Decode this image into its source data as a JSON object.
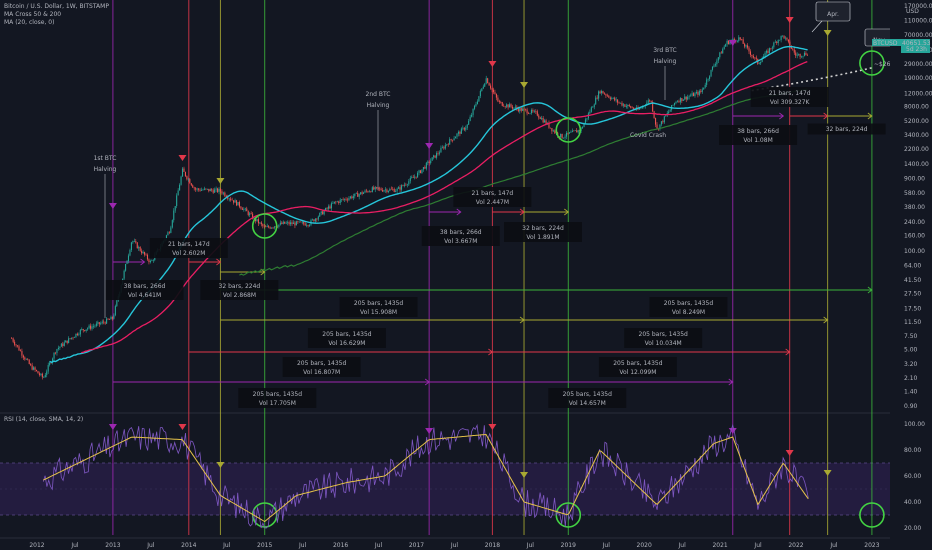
{
  "header": {
    "symbol_line": "Bitcoin / U.S. Dollar, 1W, BITSTAMP",
    "indicator_1": "MA Cross 50 & 200",
    "indicator_2": "MA (20, close, 0)",
    "rsi_line": "RSI (14, close, SMA, 14, 2)"
  },
  "price_axis": {
    "currency": "USD",
    "ticks": [
      "170000.00",
      "110000.00",
      "70000.00",
      "45000.00",
      "29000.00",
      "19000.00",
      "12000.00",
      "8000.00",
      "5200.00",
      "3400.00",
      "2200.00",
      "1400.00",
      "900.00",
      "580.00",
      "380.00",
      "240.00",
      "160.00",
      "100.00",
      "64.00",
      "41.50",
      "27.50",
      "17.50",
      "11.50",
      "7.50",
      "5.00",
      "3.20",
      "2.10",
      "1.40",
      "0.90"
    ],
    "current_price_tag": "BTCUSD",
    "current_price": "40651.53",
    "tag_sub": "5d 23h"
  },
  "rsi_axis": {
    "ticks": [
      "100.00",
      "80.00",
      "60.00",
      "40.00",
      "20.00"
    ]
  },
  "time_axis": {
    "ticks": [
      "2012",
      "Jul",
      "2013",
      "Jul",
      "2014",
      "Jul",
      "2015",
      "Jul",
      "2016",
      "Jul",
      "2017",
      "Jul",
      "2018",
      "Jul",
      "2019",
      "Jul",
      "2020",
      "Jul",
      "2021",
      "Jul",
      "2022",
      "Jul",
      "2023"
    ]
  },
  "annotations": {
    "halving_1": [
      "1st BTC",
      "Halving"
    ],
    "halving_2": [
      "2nd BTC",
      "Halving"
    ],
    "halving_3": [
      "3rd BTC",
      "Halving"
    ],
    "covid": "Covid Crash",
    "apr": "Apr.",
    "nov": "Nov",
    "target": "~$26k"
  },
  "boxes": [
    {
      "l1": "21 bars, 147d",
      "l2": "Vol 2.602M"
    },
    {
      "l1": "38 bars, 266d",
      "l2": "Vol 4.641M"
    },
    {
      "l1": "32 bars, 224d",
      "l2": "Vol 2.868M"
    },
    {
      "l1": "21 bars, 147d",
      "l2": "Vol 2.447M"
    },
    {
      "l1": "38 bars, 266d",
      "l2": "Vol 3.667M"
    },
    {
      "l1": "32 bars, 224d",
      "l2": "Vol 1.891M"
    },
    {
      "l1": "21 bars, 147d",
      "l2": "Vol 309.327K"
    },
    {
      "l1": "38 bars, 266d",
      "l2": "Vol 1.08M"
    },
    {
      "l1": "32 bars, 224d",
      "l2": ""
    },
    {
      "l1": "205 bars, 1435d",
      "l2": "Vol 15.908M"
    },
    {
      "l1": "205 bars, 1435d",
      "l2": "Vol 8.249M"
    },
    {
      "l1": "205 bars, 1435d",
      "l2": "Vol 16.629M"
    },
    {
      "l1": "205 bars, 1435d",
      "l2": "Vol 10.034M"
    },
    {
      "l1": "205 bars, 1435d",
      "l2": "Vol 16.807M"
    },
    {
      "l1": "205 bars, 1435d",
      "l2": "Vol 12.099M"
    },
    {
      "l1": "205 bars, 1435d",
      "l2": "Vol 17.705M"
    },
    {
      "l1": "205 bars, 1435d",
      "l2": "Vol 14.657M"
    }
  ],
  "colors": {
    "background": "#131722",
    "purple": "#9c27b0",
    "red": "#e0374a",
    "olive": "#a8a832",
    "green": "#3bb33b",
    "ma_fast": "#26c6da",
    "ma_mid": "#e91e63",
    "ma_slow": "#2e7d32",
    "rsi": "#7e57c2",
    "rsi_signal": "#e6c34a"
  },
  "chart_data": {
    "type": "candlestick",
    "scale": "log",
    "series": [
      {
        "name": "Bitcoin / U.S. Dollar",
        "x": [
          "2012-01",
          "2013-01",
          "2013-11",
          "2015-01",
          "2016-01",
          "2017-01",
          "2017-12",
          "2018-12",
          "2019-06",
          "2020-03",
          "2021-04",
          "2021-11",
          "2022-03"
        ],
        "values": [
          5,
          13,
          1150,
          180,
          430,
          1000,
          19000,
          3200,
          13000,
          4000,
          64000,
          69000,
          40651.53
        ]
      }
    ],
    "rsi_range": [
      20,
      100
    ]
  }
}
